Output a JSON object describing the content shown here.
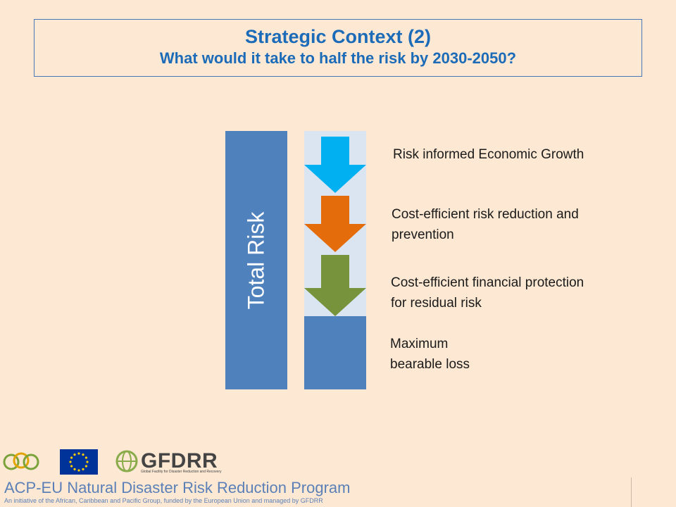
{
  "title": {
    "line1": "Strategic Context (2)",
    "line2": "What would it take to half the risk by 2030-2050?"
  },
  "diagram": {
    "total_label": "Total Risk",
    "layers": [
      {
        "label": "Risk informed Economic Growth",
        "color": "#00b0f0"
      },
      {
        "label": "Cost-efficient risk reduction and prevention",
        "color": "#e46c0a"
      },
      {
        "label": "Cost-efficient financial protection for residual risk",
        "color": "#77933c"
      },
      {
        "label": "Maximum bearable loss",
        "color": "#4f81bd"
      }
    ]
  },
  "footer": {
    "gfdrr": "GFDRR",
    "gfdrr_sub": "Global Facility for Disaster Reduction and Recovery",
    "program": "ACP-EU Natural Disaster Risk Reduction Program",
    "program_sub": "An initiative of the African, Caribbean and Pacific Group, funded by the European Union and managed by GFDRR"
  }
}
